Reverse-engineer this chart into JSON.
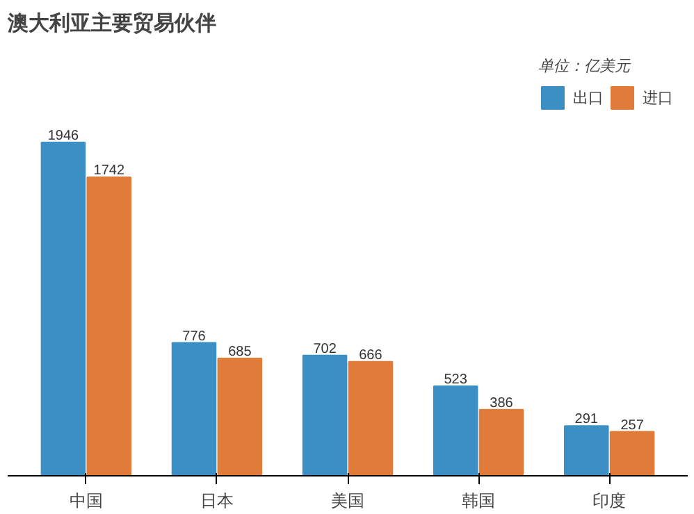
{
  "chart_data": {
    "type": "bar",
    "title": "澳大利亚主要贸易伙伴",
    "legend_title": "单位：亿美元",
    "categories": [
      "中国",
      "日本",
      "美国",
      "韩国",
      "印度"
    ],
    "series": [
      {
        "name": "出口",
        "color": "#3b8fc4",
        "values": [
          1946,
          776,
          702,
          523,
          291
        ]
      },
      {
        "name": "进口",
        "color": "#e07b39",
        "values": [
          1742,
          685,
          666,
          386,
          257
        ]
      }
    ],
    "data_labels": true,
    "legend": "top right",
    "grid": false
  }
}
